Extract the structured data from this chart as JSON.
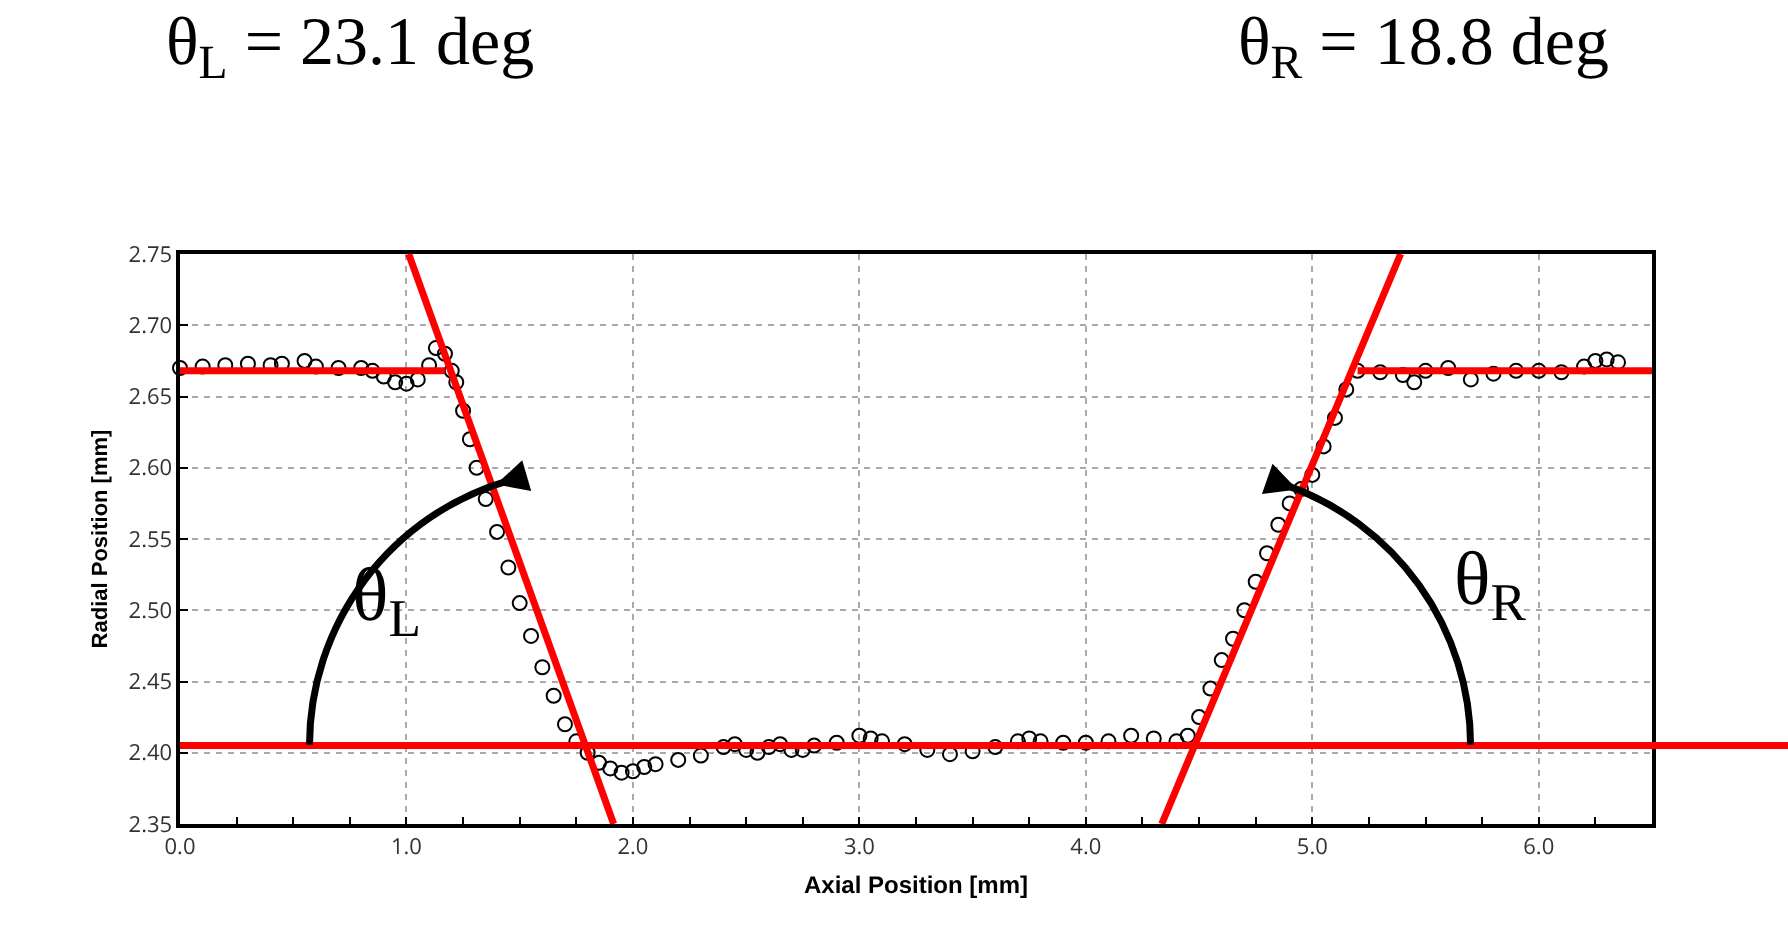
{
  "chart_data": {
    "type": "scatter",
    "xlabel": "Axial Position [mm]",
    "ylabel": "Radial Position [mm]",
    "annotations": [
      "θ$_{L}$ = 23.1 deg",
      "θ$_{R}$ = 18.8 deg",
      "θ$_{L}$",
      "θ$_{R}$"
    ],
    "series": [
      {
        "color": "#000000",
        "x": [
          0,
          0.1,
          0.2,
          0.3,
          0.4,
          0.45,
          0.55,
          0.6,
          0.7,
          0.8,
          0.85,
          0.9,
          0.95,
          1.0,
          1.05,
          1.1,
          1.13,
          1.17,
          1.2,
          1.22,
          1.25,
          1.28,
          1.31,
          1.35,
          1.4,
          1.45,
          1.5,
          1.55,
          1.6,
          1.65,
          1.7,
          1.75,
          1.8,
          1.85,
          1.9,
          1.95,
          2.0,
          2.05,
          2.1,
          2.2,
          2.3,
          2.4,
          2.45,
          2.5,
          2.55,
          2.6,
          2.65,
          2.7,
          2.75,
          2.8,
          2.9,
          3.0,
          3.05,
          3.1,
          3.2,
          3.3,
          3.4,
          3.5,
          3.6,
          3.7,
          3.75,
          3.8,
          3.9,
          4.0,
          4.1,
          4.2,
          4.3,
          4.4,
          4.45,
          4.5,
          4.55,
          4.6,
          4.65,
          4.7,
          4.75,
          4.8,
          4.85,
          4.9,
          4.95,
          5.0,
          5.05,
          5.1,
          5.15,
          5.2,
          5.3,
          5.4,
          5.45,
          5.5,
          5.6,
          5.7,
          5.8,
          5.9,
          6.0,
          6.1,
          6.2,
          6.25,
          6.3,
          6.35
        ],
        "values": [
          2.67,
          2.671,
          2.672,
          2.673,
          2.672,
          2.673,
          2.675,
          2.671,
          2.67,
          2.67,
          2.668,
          2.664,
          2.66,
          2.659,
          2.662,
          2.672,
          2.684,
          2.68,
          2.668,
          2.66,
          2.64,
          2.62,
          2.6,
          2.578,
          2.555,
          2.53,
          2.505,
          2.482,
          2.46,
          2.44,
          2.42,
          2.408,
          2.4,
          2.393,
          2.389,
          2.386,
          2.387,
          2.39,
          2.392,
          2.395,
          2.398,
          2.404,
          2.406,
          2.402,
          2.4,
          2.404,
          2.406,
          2.402,
          2.402,
          2.405,
          2.407,
          2.412,
          2.41,
          2.408,
          2.406,
          2.402,
          2.399,
          2.401,
          2.404,
          2.408,
          2.41,
          2.408,
          2.407,
          2.407,
          2.408,
          2.412,
          2.41,
          2.408,
          2.412,
          2.425,
          2.445,
          2.465,
          2.48,
          2.5,
          2.52,
          2.54,
          2.56,
          2.575,
          2.585,
          2.595,
          2.615,
          2.635,
          2.655,
          2.668,
          2.667,
          2.665,
          2.66,
          2.668,
          2.67,
          2.662,
          2.666,
          2.668,
          2.668,
          2.667,
          2.671,
          2.675,
          2.676,
          2.674
        ]
      },
      {
        "type": "line",
        "marker": "none",
        "color": "#ff0000",
        "x": [
          0,
          1.17
        ],
        "values": [
          2.668,
          2.668
        ]
      },
      {
        "type": "line",
        "marker": "none",
        "color": "#ff0000",
        "x": [
          1.01,
          1.915
        ],
        "values": [
          2.75,
          2.35
        ]
      },
      {
        "type": "line",
        "marker": "none",
        "color": "#ff0000",
        "x": [
          4.335,
          5.39
        ],
        "values": [
          2.35,
          2.75
        ]
      },
      {
        "type": "line",
        "marker": "none",
        "color": "#ff0000",
        "x": [
          5.2,
          6.5
        ],
        "values": [
          2.668,
          2.668
        ]
      }
    ],
    "ref_lines": [
      {
        "axis": "y",
        "value": 2.405,
        "color": "#ff0000"
      }
    ],
    "marker": "circle",
    "xlim": [
      0,
      6.5
    ],
    "xticks": [
      {
        "value": 0,
        "label": "0.0"
      },
      {
        "value": 1,
        "label": "1.0"
      },
      {
        "value": 2,
        "label": "2.0"
      },
      {
        "value": 3,
        "label": "3.0"
      },
      {
        "value": 4,
        "label": "4.0"
      },
      {
        "value": 5,
        "label": "5.0"
      },
      {
        "value": 6,
        "label": "6.0"
      }
    ],
    "ylim": [
      2.35,
      2.75
    ],
    "yticks": [
      2.35,
      {
        "value": 2.4,
        "label": "2.40"
      },
      2.45,
      {
        "value": 2.5,
        "label": "2.50"
      },
      2.55,
      {
        "value": 2.6,
        "label": "2.60"
      },
      2.65,
      {
        "value": 2.7,
        "label": "2.70"
      },
      2.75
    ],
    "grid": true,
    "legend": false
  }
}
